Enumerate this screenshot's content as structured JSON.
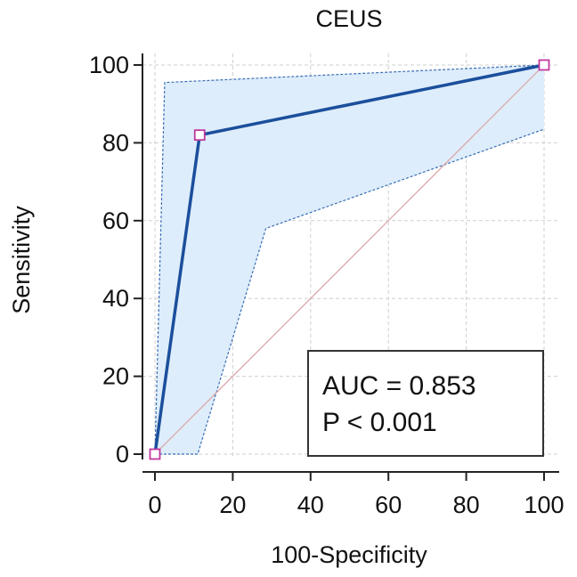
{
  "chart_data": {
    "type": "line",
    "title": "CEUS",
    "xlabel": "100-Specificity",
    "ylabel": "Sensitivity",
    "xlim": [
      0,
      100
    ],
    "ylim": [
      0,
      100
    ],
    "xticks": [
      0,
      20,
      40,
      60,
      80,
      100
    ],
    "yticks": [
      0,
      20,
      40,
      60,
      80,
      100
    ],
    "grid": true,
    "series": [
      {
        "role": "roc-curve",
        "x": [
          0,
          11.5,
          100
        ],
        "y": [
          0,
          82,
          100
        ]
      },
      {
        "role": "ci-upper",
        "x": [
          0,
          2.5,
          100
        ],
        "y": [
          0,
          95.5,
          100
        ]
      },
      {
        "role": "ci-lower",
        "x": [
          0,
          11,
          28.5,
          100
        ],
        "y": [
          0,
          0,
          58,
          83.5
        ]
      },
      {
        "role": "reference-diagonal",
        "x": [
          0,
          100
        ],
        "y": [
          0,
          100
        ]
      }
    ],
    "annotations": [
      "AUC = 0.853",
      "P < 0.001"
    ],
    "colors": {
      "roc": "#1b4f9c",
      "ci_fill": "#deedfb",
      "ci_line": "#3a6fb5",
      "marker": "#c0399f",
      "diagonal": "#d9a3a3",
      "grid": "#cfcfcf"
    }
  }
}
